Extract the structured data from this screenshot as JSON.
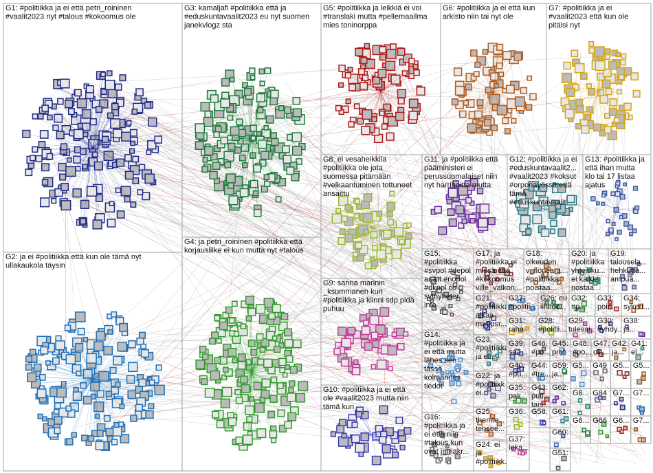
{
  "groups": [
    {
      "lines": [
        "G1: #politiikka ja ei että petri_roininen",
        "#vaalit2023 nyt #talous #kokoomus ole"
      ]
    },
    {
      "lines": [
        "G2: ja ei #politiikka että kun ole tämä nyt",
        "ullakaukola täysin"
      ]
    },
    {
      "lines": [
        "G3: kamaljafi #politiikka että ja",
        "#eduskuntavaalit2023 eu nyt suomen",
        "janekvlogz sta"
      ]
    },
    {
      "lines": [
        "G4: ja petri_roininen #politiikka että",
        "korjausliike ei kun mutta nyt #talous"
      ]
    },
    {
      "lines": [
        "G5: #politiikka ja leikkiä ei voi",
        "#translaki mutta #pellemaailma",
        "mies toninorppa"
      ]
    },
    {
      "lines": [
        "G6: #politiikka ja ei että kun",
        "arkisto niin tai nyt ole"
      ]
    },
    {
      "lines": [
        "G7: #politiikka ja ei",
        "#vaalit2023 että kun ole",
        "pitäisi nyt"
      ]
    },
    {
      "lines": [
        "G8: ei vesaheikkila",
        "#politiikka ole jota",
        "suomessa pitämään",
        "#velkaantuminen tottuneet",
        "ansaittu"
      ]
    },
    {
      "lines": [
        "G9: sanna marinin",
        "_ksummanen kun",
        "#politiikka ja kiinni sdp pidä",
        "puhuu"
      ]
    },
    {
      "lines": [
        "G10: #politiikka ja ei että",
        "ole #vaalit2023 mutta niin",
        "tämä kun"
      ]
    },
    {
      "lines": [
        "G11: ja #politiikka että",
        "pääministeri ei",
        "perussuomalaiset niin",
        "nyt harrihoitta mutta"
      ]
    },
    {
      "lines": [
        "G12: #politiikka ja ei",
        "#eduskuntavaalit2...",
        "#vaalit2023 #koksut",
        "#orponayössä että",
        "tämä",
        "#eduskuntavaalit"
      ]
    },
    {
      "lines": [
        "G13: #politiikka ja",
        "että ihan mutta",
        "klo tai 17 listaa",
        "ajatus"
      ]
    },
    {
      "lines": [
        "G15:",
        "#politiikka",
        "#svpol #depol",
        "ar att #nopol",
        "#dkpol co",
        "svtnyheter",
        "inte"
      ]
    },
    {
      "lines": [
        "G14:",
        "#politiikka ja",
        "ei että mutta",
        "lähes sen",
        "tässä",
        "kolmannes",
        "tiedot"
      ]
    },
    {
      "lines": [
        "G16:",
        "#politiikka ja",
        "ei että niin",
        "#talous kun",
        "ovat j_makr..."
      ]
    },
    {
      "lines": [
        "G17: ja",
        "#politiikka ei",
        "missä että",
        "#kokoomus",
        "ville_valkon..."
      ]
    },
    {
      "lines": [
        "G18:",
        "oikeuden",
        "v_floncara...",
        "#politiikka",
        "poistaa..."
      ]
    },
    {
      "lines": [
        "G20: ja",
        "#politiikka",
        "yhteisku...",
        "ei kaikki",
        "nostaa..."
      ]
    },
    {
      "lines": [
        "G19:",
        "talousela...",
        "hehkutta...",
        "ampua..."
      ]
    },
    {
      "lines": [
        "G21:",
        "#politiikka",
        "alkaa",
        "maripsr..."
      ]
    },
    {
      "lines": [
        "G27:",
        "#politii..."
      ]
    },
    {
      "lines": [
        "G26: eu",
        "iihtloc..."
      ]
    },
    {
      "lines": [
        "G32:",
        "#p..."
      ]
    },
    {
      "lines": [
        "G33:",
        "pois..."
      ]
    },
    {
      "lines": [
        "G34:",
        "sykeri..."
      ]
    },
    {
      "lines": [
        "G31:",
        "raha"
      ]
    },
    {
      "lines": [
        "G28:",
        "#politii..."
      ]
    },
    {
      "lines": [
        "G29:",
        "tulevai..."
      ]
    },
    {
      "lines": [
        "G30:",
        "#yhdy..."
      ]
    },
    {
      "lines": [
        "G38:",
        "ja..."
      ]
    },
    {
      "lines": [
        "G23:",
        "#politiikka",
        "ja ei..."
      ]
    },
    {
      "lines": [
        "G39:",
        "saa..."
      ]
    },
    {
      "lines": [
        "G46:",
        "#po..."
      ]
    },
    {
      "lines": [
        "G45:",
        "prof"
      ]
    },
    {
      "lines": [
        "G48:",
        "#po..."
      ]
    },
    {
      "lines": [
        "G47:",
        "oli..."
      ]
    },
    {
      "lines": [
        "G42:",
        "ja..."
      ]
    },
    {
      "lines": [
        "G41:",
        "ei..."
      ]
    },
    {
      "lines": [
        "G22: ja",
        "#politiikk",
        "ei..."
      ]
    },
    {
      "lines": [
        "G40:",
        "#pu..."
      ]
    },
    {
      "lines": [
        "G44:",
        "#tre..."
      ]
    },
    {
      "lines": [
        "G59:",
        "ja..."
      ]
    },
    {
      "lines": [
        "G35:",
        "pak..."
      ]
    },
    {
      "lines": [
        "G43:",
        "puti...",
        "tais..."
      ]
    },
    {
      "lines": [
        "G25:",
        "thenite...",
        "tehsee..."
      ]
    },
    {
      "lines": [
        "G24: ei",
        "ja",
        "#politiikk..."
      ]
    },
    {
      "lines": [
        "G36:"
      ]
    },
    {
      "lines": [
        "G37:",
        "loka..."
      ]
    },
    {
      "lines": [
        "G58:"
      ]
    },
    {
      "lines": [
        "G62:"
      ]
    },
    {
      "lines": [
        "G61:"
      ]
    },
    {
      "lines": [
        "G60:"
      ]
    },
    {
      "lines": [
        "G51:"
      ]
    },
    {
      "lines": [
        "G5..."
      ]
    },
    {
      "lines": [
        "G49"
      ]
    },
    {
      "lines": [
        "G5..."
      ]
    },
    {
      "lines": [
        "G5..."
      ]
    },
    {
      "lines": [
        "G8..."
      ]
    },
    {
      "lines": [
        "G84"
      ]
    },
    {
      "lines": [
        "G7..."
      ]
    },
    {
      "lines": [
        "G7..."
      ]
    },
    {
      "lines": [
        "G6..."
      ]
    },
    {
      "lines": [
        "G66"
      ]
    },
    {
      "lines": [
        "G6..."
      ]
    },
    {
      "lines": [
        "G7..."
      ]
    }
  ]
}
